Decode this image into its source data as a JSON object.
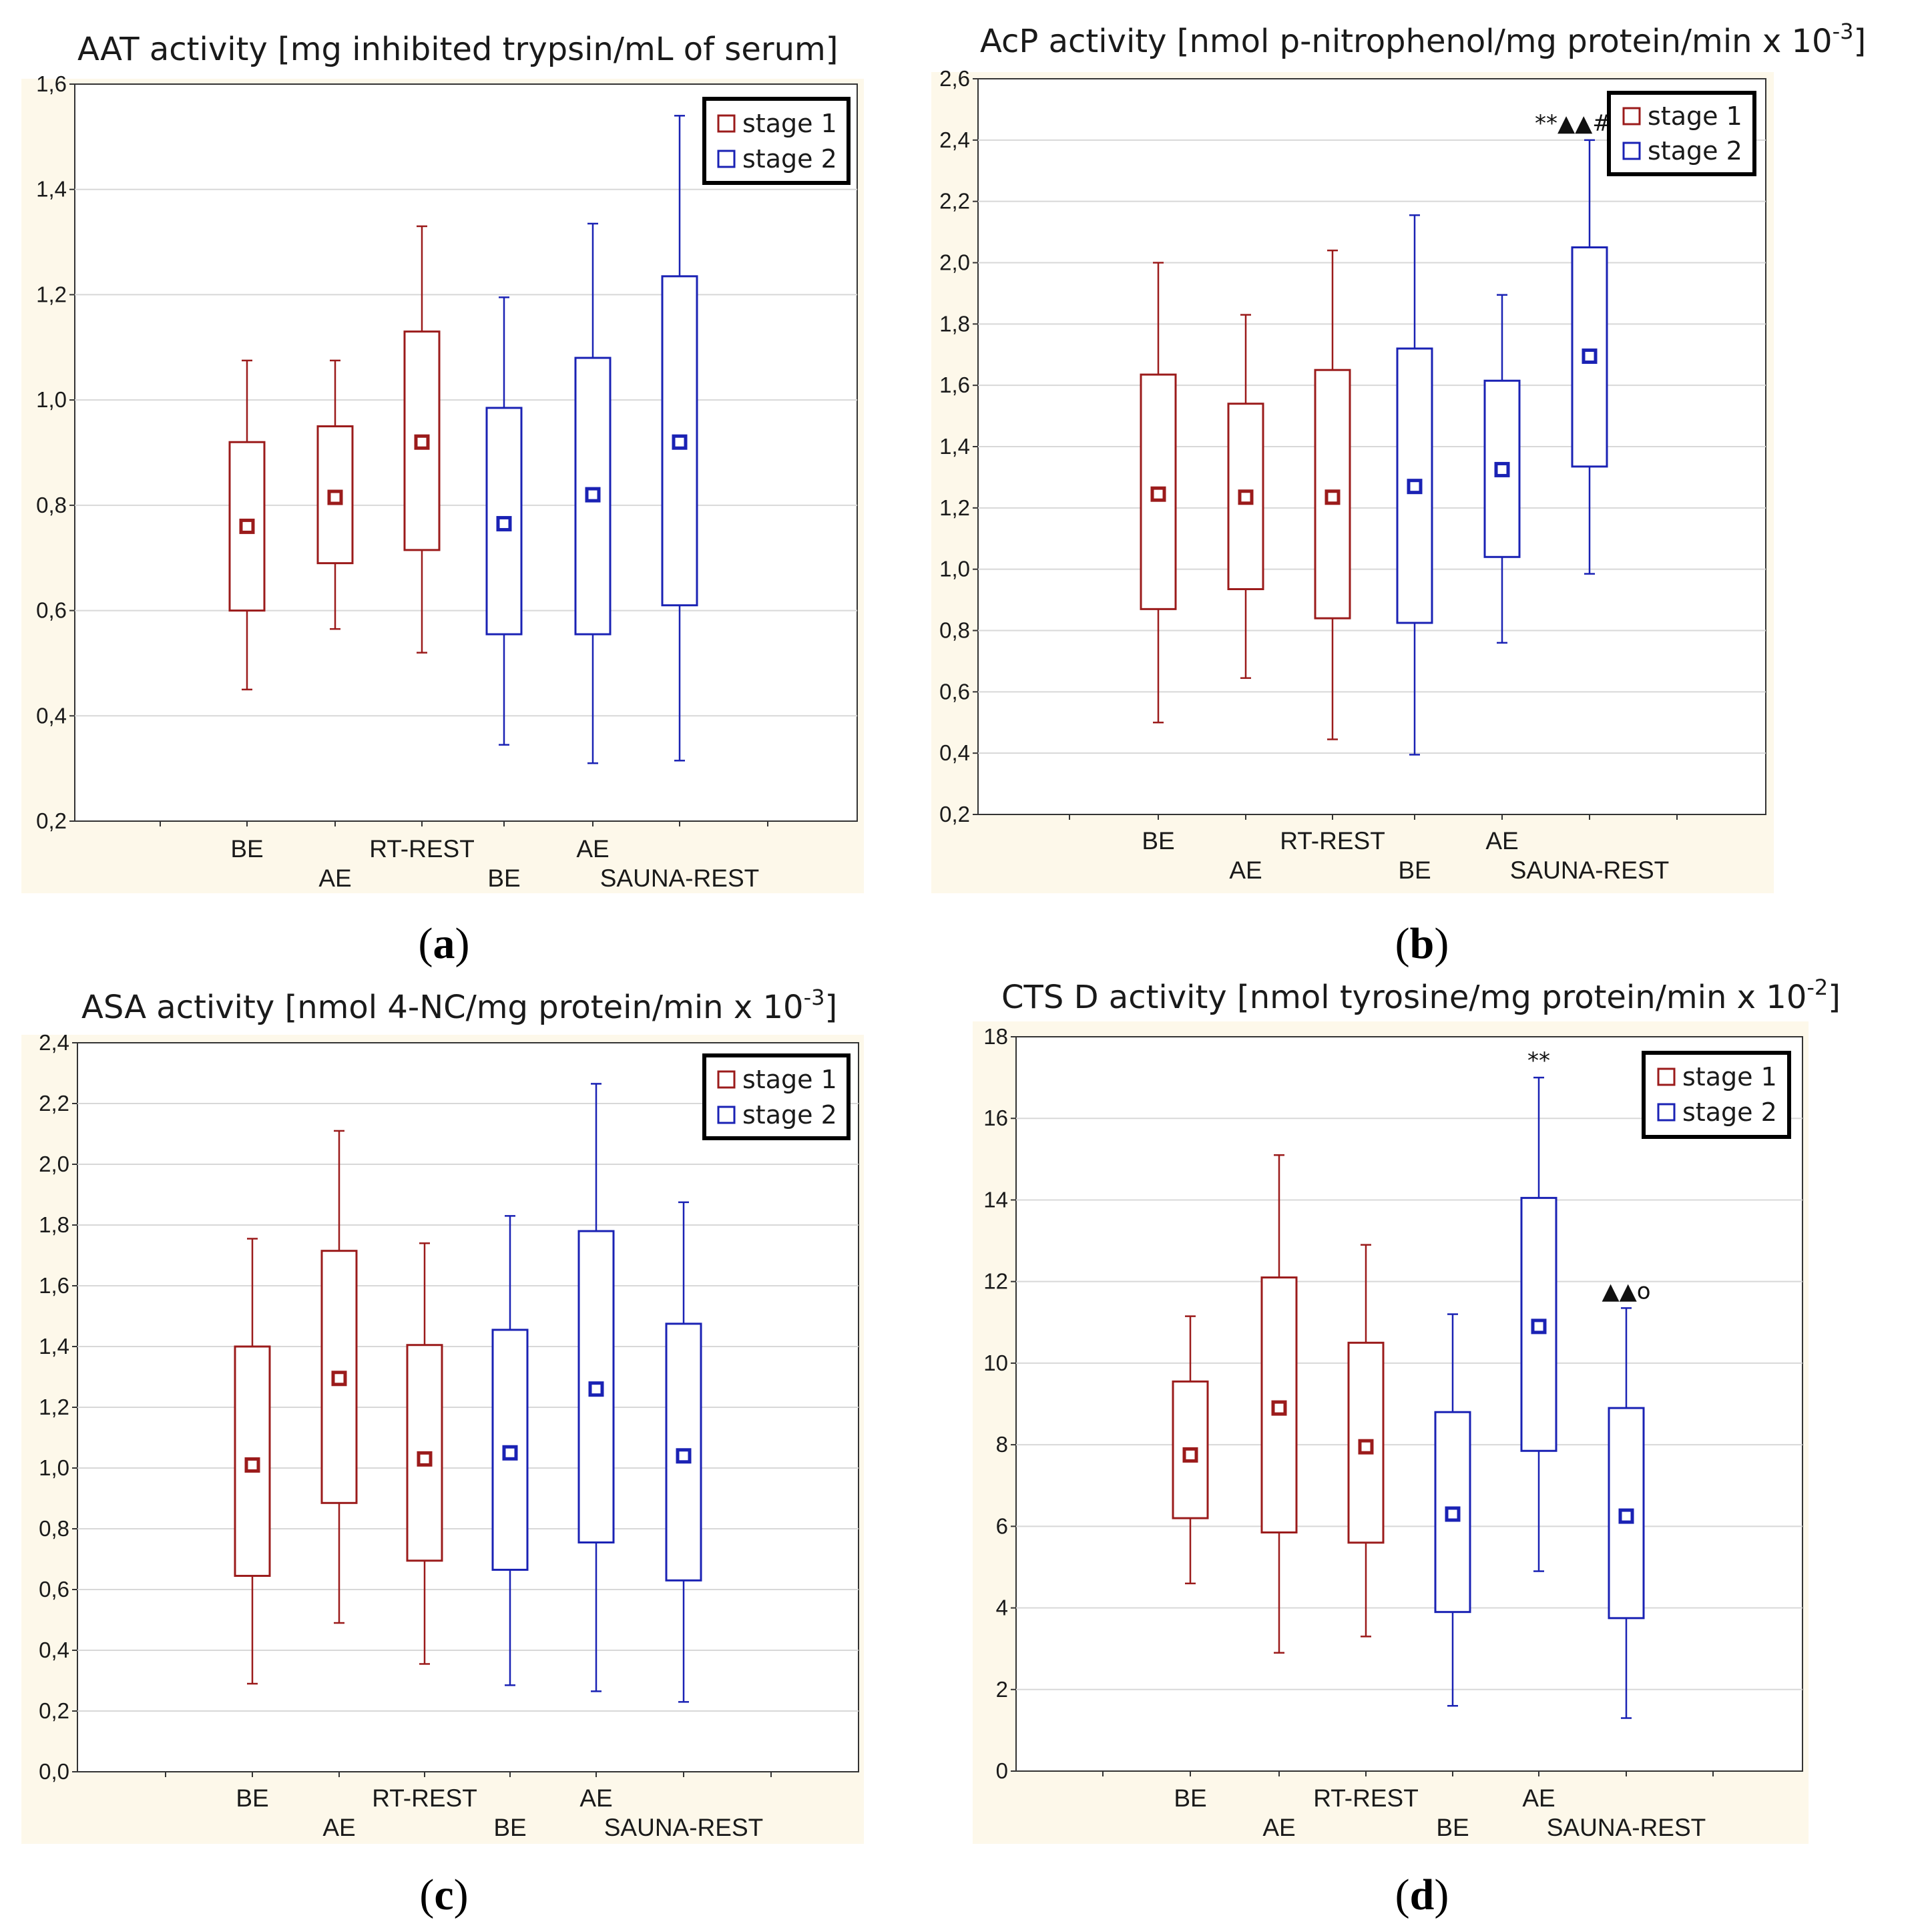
{
  "colors": {
    "stage1": "#9b1b1b",
    "stage2": "#1a22b4",
    "panel_bg": "#fdf8ea",
    "grid": "#d8d8d8"
  },
  "chart_data": [
    {
      "id": "a",
      "type": "box",
      "title_main": "AAT activity [mg inhibited trypsin/mL of serum]",
      "title_sup": "",
      "title_end": "",
      "caption_letter": "a",
      "ylim": [
        0.2,
        1.6
      ],
      "yticks": [
        "0,2",
        "0,4",
        "0,6",
        "0,8",
        "1,0",
        "1,2",
        "1,4",
        "1,6"
      ],
      "ytick_values": [
        0.2,
        0.4,
        0.6,
        0.8,
        1.0,
        1.2,
        1.4,
        1.6
      ],
      "legend": [
        {
          "label": "stage 1",
          "stage": 1
        },
        {
          "label": "stage 2",
          "stage": 2
        }
      ],
      "categories_upper": [
        "BE",
        "RT-REST",
        "AE"
      ],
      "categories_lower": [
        "AE",
        "BE",
        "SAUNA-REST"
      ],
      "boxes": [
        {
          "category": "BE",
          "stage": 1,
          "min": 0.45,
          "q1": 0.6,
          "median": 0.76,
          "q3": 0.92,
          "max": 1.075
        },
        {
          "category": "AE",
          "stage": 1,
          "min": 0.565,
          "q1": 0.69,
          "median": 0.815,
          "q3": 0.95,
          "max": 1.075
        },
        {
          "category": "RT-REST",
          "stage": 1,
          "min": 0.52,
          "q1": 0.715,
          "median": 0.92,
          "q3": 1.13,
          "max": 1.33
        },
        {
          "category": "BE",
          "stage": 2,
          "min": 0.345,
          "q1": 0.555,
          "median": 0.765,
          "q3": 0.985,
          "max": 1.195
        },
        {
          "category": "AE",
          "stage": 2,
          "min": 0.31,
          "q1": 0.555,
          "median": 0.82,
          "q3": 1.08,
          "max": 1.335
        },
        {
          "category": "SAUNA-REST",
          "stage": 2,
          "min": 0.315,
          "q1": 0.61,
          "median": 0.92,
          "q3": 1.235,
          "max": 1.54
        }
      ],
      "annotations": []
    },
    {
      "id": "b",
      "type": "box",
      "title_main": "AcP activity [nmol p-nitrophenol/mg protein/min x 10",
      "title_sup": "-3",
      "title_end": "]",
      "caption_letter": "b",
      "ylim": [
        0.2,
        2.6
      ],
      "yticks": [
        "0,2",
        "0,4",
        "0,6",
        "0,8",
        "1,0",
        "1,2",
        "1,4",
        "1,6",
        "1,8",
        "2,0",
        "2,2",
        "2,4",
        "2,6"
      ],
      "ytick_values": [
        0.2,
        0.4,
        0.6,
        0.8,
        1.0,
        1.2,
        1.4,
        1.6,
        1.8,
        2.0,
        2.2,
        2.4,
        2.6
      ],
      "legend": [
        {
          "label": "stage 1",
          "stage": 1
        },
        {
          "label": "stage 2",
          "stage": 2
        }
      ],
      "categories_upper": [
        "BE",
        "RT-REST",
        "AE"
      ],
      "categories_lower": [
        "AE",
        "BE",
        "SAUNA-REST"
      ],
      "boxes": [
        {
          "category": "BE",
          "stage": 1,
          "min": 0.5,
          "q1": 0.87,
          "median": 1.245,
          "q3": 1.635,
          "max": 2.0
        },
        {
          "category": "AE",
          "stage": 1,
          "min": 0.645,
          "q1": 0.935,
          "median": 1.235,
          "q3": 1.54,
          "max": 1.83
        },
        {
          "category": "RT-REST",
          "stage": 1,
          "min": 0.445,
          "q1": 0.84,
          "median": 1.235,
          "q3": 1.65,
          "max": 2.04
        },
        {
          "category": "BE",
          "stage": 2,
          "min": 0.395,
          "q1": 0.825,
          "median": 1.27,
          "q3": 1.72,
          "max": 2.155
        },
        {
          "category": "AE",
          "stage": 2,
          "min": 0.76,
          "q1": 1.04,
          "median": 1.325,
          "q3": 1.615,
          "max": 1.895
        },
        {
          "category": "SAUNA-REST",
          "stage": 2,
          "min": 0.985,
          "q1": 1.335,
          "median": 1.695,
          "q3": 2.05,
          "max": 2.4
        }
      ],
      "annotations": [
        {
          "box_index": 5,
          "text": "**▲▲##o"
        }
      ]
    },
    {
      "id": "c",
      "type": "box",
      "title_main": "ASA activity [nmol 4-NC/mg protein/min x 10",
      "title_sup": "-3",
      "title_end": "]",
      "caption_letter": "c",
      "ylim": [
        0.0,
        2.4
      ],
      "yticks": [
        "0,0",
        "0,2",
        "0,4",
        "0,6",
        "0,8",
        "1,0",
        "1,2",
        "1,4",
        "1,6",
        "1,8",
        "2,0",
        "2,2",
        "2,4"
      ],
      "ytick_values": [
        0.0,
        0.2,
        0.4,
        0.6,
        0.8,
        1.0,
        1.2,
        1.4,
        1.6,
        1.8,
        2.0,
        2.2,
        2.4
      ],
      "legend": [
        {
          "label": "stage 1",
          "stage": 1
        },
        {
          "label": "stage 2",
          "stage": 2
        }
      ],
      "categories_upper": [
        "BE",
        "RT-REST",
        "AE"
      ],
      "categories_lower": [
        "AE",
        "BE",
        "SAUNA-REST"
      ],
      "boxes": [
        {
          "category": "BE",
          "stage": 1,
          "min": 0.29,
          "q1": 0.645,
          "median": 1.01,
          "q3": 1.4,
          "max": 1.755
        },
        {
          "category": "AE",
          "stage": 1,
          "min": 0.49,
          "q1": 0.885,
          "median": 1.295,
          "q3": 1.715,
          "max": 2.11
        },
        {
          "category": "RT-REST",
          "stage": 1,
          "min": 0.355,
          "q1": 0.695,
          "median": 1.03,
          "q3": 1.405,
          "max": 1.74
        },
        {
          "category": "BE",
          "stage": 2,
          "min": 0.285,
          "q1": 0.665,
          "median": 1.05,
          "q3": 1.455,
          "max": 1.83
        },
        {
          "category": "AE",
          "stage": 2,
          "min": 0.265,
          "q1": 0.755,
          "median": 1.26,
          "q3": 1.78,
          "max": 2.265
        },
        {
          "category": "SAUNA-REST",
          "stage": 2,
          "min": 0.23,
          "q1": 0.63,
          "median": 1.04,
          "q3": 1.475,
          "max": 1.875
        }
      ],
      "annotations": []
    },
    {
      "id": "d",
      "type": "box",
      "title_main": "CTS D activity [nmol tyrosine/mg protein/min x 10",
      "title_sup": "-2",
      "title_end": "]",
      "caption_letter": "d",
      "ylim": [
        0,
        18
      ],
      "yticks": [
        "0",
        "2",
        "4",
        "6",
        "8",
        "10",
        "12",
        "14",
        "16",
        "18"
      ],
      "ytick_values": [
        0,
        2,
        4,
        6,
        8,
        10,
        12,
        14,
        16,
        18
      ],
      "legend": [
        {
          "label": "stage 1",
          "stage": 1
        },
        {
          "label": "stage 2",
          "stage": 2
        }
      ],
      "categories_upper": [
        "BE",
        "RT-REST",
        "AE"
      ],
      "categories_lower": [
        "AE",
        "BE",
        "SAUNA-REST"
      ],
      "boxes": [
        {
          "category": "BE",
          "stage": 1,
          "min": 4.6,
          "q1": 6.2,
          "median": 7.75,
          "q3": 9.55,
          "max": 11.15
        },
        {
          "category": "AE",
          "stage": 1,
          "min": 2.9,
          "q1": 5.85,
          "median": 8.9,
          "q3": 12.1,
          "max": 15.1
        },
        {
          "category": "RT-REST",
          "stage": 1,
          "min": 3.3,
          "q1": 5.6,
          "median": 7.95,
          "q3": 10.5,
          "max": 12.9
        },
        {
          "category": "BE",
          "stage": 2,
          "min": 1.6,
          "q1": 3.9,
          "median": 6.3,
          "q3": 8.8,
          "max": 11.2
        },
        {
          "category": "AE",
          "stage": 2,
          "min": 4.9,
          "q1": 7.85,
          "median": 10.9,
          "q3": 14.05,
          "max": 17.0
        },
        {
          "category": "SAUNA-REST",
          "stage": 2,
          "min": 1.3,
          "q1": 3.75,
          "median": 6.25,
          "q3": 8.9,
          "max": 11.35
        }
      ],
      "annotations": [
        {
          "box_index": 4,
          "text": "**"
        },
        {
          "box_index": 5,
          "text": "▲▲o"
        }
      ]
    }
  ]
}
